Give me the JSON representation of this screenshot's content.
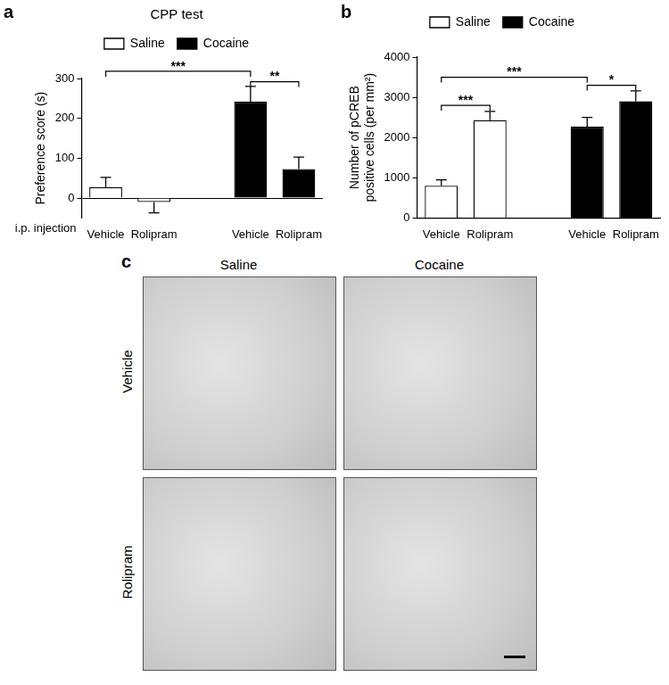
{
  "chart_data": [
    {
      "type": "bar",
      "panel_label": "a",
      "title": "CPP test",
      "x_label": "i.p. injection",
      "y_label": "Preference score (s)",
      "categories": [
        "Vehicle",
        "Rolipram",
        null,
        "Vehicle",
        "Rolipram"
      ],
      "series": [
        {
          "name": "Saline",
          "color": "#ffffff",
          "values": [
            27,
            -10,
            null,
            null,
            null
          ],
          "errors": [
            25,
            27,
            null,
            null,
            null
          ]
        },
        {
          "name": "Cocaine",
          "color": "#000000",
          "values": [
            null,
            null,
            null,
            242,
            73
          ],
          "errors": [
            null,
            null,
            null,
            38,
            30
          ]
        }
      ],
      "ylim": [
        -50,
        300
      ],
      "yticks": [
        0,
        100,
        200,
        300
      ],
      "grid": false,
      "legend": "top",
      "annotations": [
        {
          "text": "***",
          "from": 0,
          "to": 3,
          "y": 318
        },
        {
          "text": "**",
          "from": 3,
          "to": 4,
          "y": 292
        }
      ]
    },
    {
      "type": "bar",
      "panel_label": "b",
      "y_label": [
        "Number of pCREB",
        "positive cells (per mm²)"
      ],
      "categories": [
        "Vehicle",
        "Rolipram",
        null,
        "Vehicle",
        "Rolipram"
      ],
      "series": [
        {
          "name": "Saline",
          "color": "#ffffff",
          "values": [
            800,
            2430,
            null,
            null,
            null
          ],
          "errors": [
            150,
            220,
            null,
            null,
            null
          ]
        },
        {
          "name": "Cocaine",
          "color": "#000000",
          "values": [
            null,
            null,
            null,
            2270,
            2900
          ],
          "errors": [
            null,
            null,
            null,
            230,
            260
          ]
        }
      ],
      "ylim": [
        0,
        4000
      ],
      "yticks": [
        0,
        1000,
        2000,
        3000,
        4000
      ],
      "grid": false,
      "legend": "top",
      "annotations": [
        {
          "text": "***",
          "from": 0,
          "to": 1,
          "y": 2800
        },
        {
          "text": "***",
          "from": 0,
          "to": 3,
          "y": 3500
        },
        {
          "text": "*",
          "from": 3,
          "to": 4,
          "y": 3300
        }
      ]
    }
  ],
  "image_panel": {
    "panel_label": "c",
    "columns": [
      "Saline",
      "Cocaine"
    ],
    "rows": [
      "Vehicle",
      "Rolipram"
    ]
  }
}
